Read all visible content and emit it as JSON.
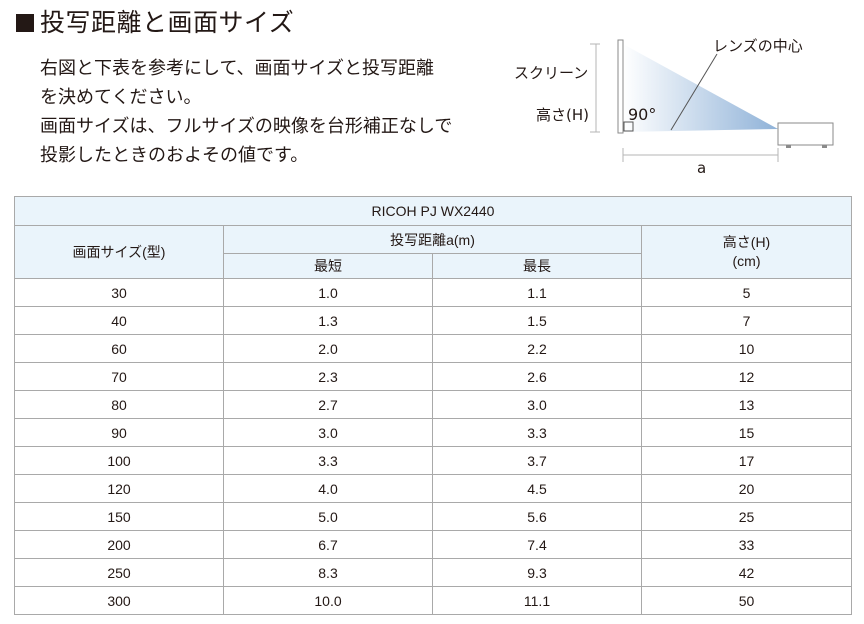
{
  "title": "投写距離と画面サイズ",
  "intro": {
    "line1": "右図と下表を参考にして、画面サイズと投写距離",
    "line2": "を決めてください。",
    "line3": "画面サイズは、フルサイズの映像を台形補正なしで",
    "line4": "投影したときのおよその値です。"
  },
  "diagram": {
    "screen_label": "スクリーン",
    "height_label": "高さ(H)",
    "angle_label": "90°",
    "lens_label": "レンズの中心",
    "distance_label": "a"
  },
  "table": {
    "model": "RICOH PJ WX2440",
    "col_size": "画面サイズ(型)",
    "col_distance": "投写距離a(m)",
    "col_min": "最短",
    "col_max": "最長",
    "col_height_line1": "高さ(H)",
    "col_height_line2": "(cm)",
    "rows": [
      [
        "30",
        "1.0",
        "1.1",
        "5"
      ],
      [
        "40",
        "1.3",
        "1.5",
        "7"
      ],
      [
        "60",
        "2.0",
        "2.2",
        "10"
      ],
      [
        "70",
        "2.3",
        "2.6",
        "12"
      ],
      [
        "80",
        "2.7",
        "3.0",
        "13"
      ],
      [
        "90",
        "3.0",
        "3.3",
        "15"
      ],
      [
        "100",
        "3.3",
        "3.7",
        "17"
      ],
      [
        "120",
        "4.0",
        "4.5",
        "20"
      ],
      [
        "150",
        "5.0",
        "5.6",
        "25"
      ],
      [
        "200",
        "6.7",
        "7.4",
        "33"
      ],
      [
        "250",
        "8.3",
        "9.3",
        "42"
      ],
      [
        "300",
        "10.0",
        "11.1",
        "50"
      ]
    ]
  }
}
